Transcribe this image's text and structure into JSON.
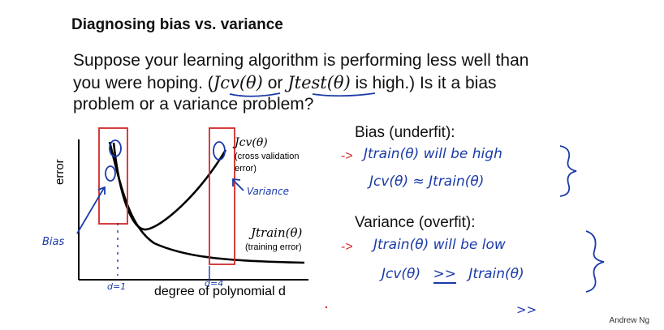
{
  "slide": {
    "title": "Diagnosing bias vs. variance",
    "question": {
      "line1": "Suppose your learning algorithm is performing less well than",
      "line2_a": "you were hoping. (",
      "jcv": "Jcv(θ)",
      "or": "or",
      "jtest": "Jtest(θ)",
      "line2_b": "is high.)  Is it a bias",
      "line3": "problem or a variance problem?"
    },
    "footer": "Andrew Ng"
  },
  "plot": {
    "ylabel": "error",
    "xlabel": "degree of polynomial d",
    "cv_label": "Jcv(θ)",
    "cv_caption_1": "(cross validation",
    "cv_caption_2": "error)",
    "train_label": "Jtrain(θ)",
    "train_caption": "(training error)",
    "left_tick": "d=1",
    "right_tick": "d=4",
    "note_bias": "Bias",
    "note_variance": "Variance"
  },
  "notes": {
    "bias_heading": "Bias (underfit):",
    "bias_line1": "Jtrain(θ) will be high",
    "bias_line2": "Jcv(θ) ≈ Jtrain(θ)",
    "variance_heading": "Variance (overfit):",
    "variance_line1": "Jtrain(θ) will be low",
    "variance_line2_a": "Jcv(θ)",
    "variance_line2_op": ">>",
    "variance_line2_b": "Jtrain(θ)",
    "stray": ">>",
    "arrow": "->"
  },
  "colors": {
    "ink_blue": "#1a3aa8",
    "ink_red": "#d22a2a",
    "text": "#111111"
  }
}
